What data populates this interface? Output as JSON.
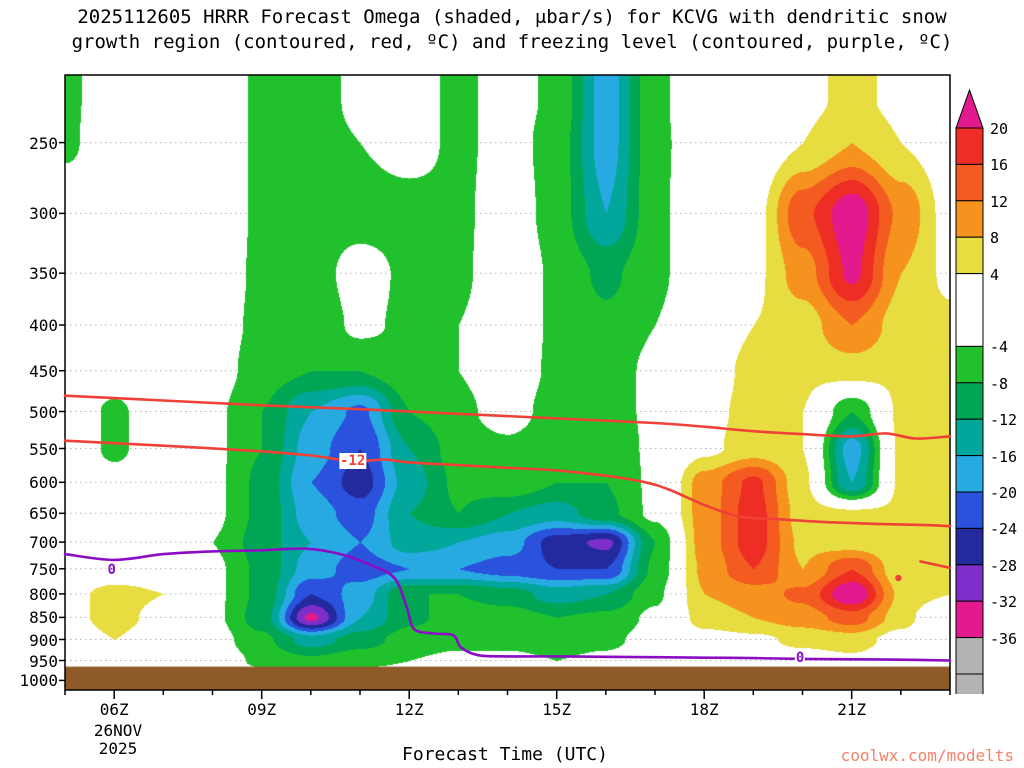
{
  "title": {
    "line1": "2025112605 HRRR Forecast Omega (shaded, μbar/s) for KCVG with dendritic snow",
    "line2": "growth region (contoured, red, ºC) and freezing level (contoured, purple, ºC)"
  },
  "watermark": {
    "text": "coolwx.com/modelts",
    "color": "#f2836b"
  },
  "axes": {
    "x_title": "Forecast Time (UTC)",
    "x_ticks": [
      {
        "hour": 6,
        "label": "06Z"
      },
      {
        "hour": 9,
        "label": "09Z"
      },
      {
        "hour": 12,
        "label": "12Z"
      },
      {
        "hour": 15,
        "label": "15Z"
      },
      {
        "hour": 18,
        "label": "18Z"
      },
      {
        "hour": 21,
        "label": "21Z"
      }
    ],
    "date_line1": "26NOV",
    "date_line2": "2025",
    "y_ticks": [
      250,
      300,
      350,
      400,
      450,
      500,
      550,
      600,
      650,
      700,
      750,
      800,
      850,
      900,
      950,
      1000
    ]
  },
  "chart_data": {
    "type": "heatmap",
    "title": "HRRR Forecast Omega time-height cross section for KCVG",
    "units": "μbar/s",
    "x_axis": "Forecast Time (UTC), 26 Nov 2025, range 05Z-23Z",
    "y_axis": "Pressure (hPa), log scale, 210 (top) to 1025 (bottom)",
    "x_range": [
      5,
      23
    ],
    "y_range": [
      210,
      1025
    ],
    "y_scale": "log",
    "x_hours": [
      5,
      6,
      7,
      8,
      9,
      10,
      11,
      12,
      13,
      14,
      15,
      16,
      17,
      18,
      19,
      20,
      21,
      22,
      23
    ],
    "pressures_hpa": [
      225,
      250,
      300,
      350,
      400,
      450,
      500,
      550,
      600,
      650,
      700,
      750,
      800,
      850,
      900,
      950,
      1000
    ],
    "omega_grid": [
      [
        -5,
        -1,
        0,
        0,
        -5,
        -6,
        -3,
        -2,
        -5,
        -2,
        -5,
        -18,
        -5,
        0,
        0,
        3,
        5,
        3,
        0
      ],
      [
        -5,
        0,
        0,
        0,
        -5,
        -6,
        -4,
        -2,
        -5,
        -2,
        -6,
        -18,
        -5,
        -1,
        0,
        4,
        8,
        4,
        1
      ],
      [
        0,
        0,
        0,
        0,
        -5,
        -6,
        -6,
        -6,
        -5,
        -1,
        -6,
        -16,
        -5,
        0,
        2,
        15,
        23,
        11,
        2
      ],
      [
        0,
        0,
        0,
        -1,
        -5,
        -6,
        -2,
        -5,
        -5,
        0,
        -5,
        -9,
        -5,
        0,
        3,
        10,
        21,
        8,
        3
      ],
      [
        0,
        0,
        0,
        -2,
        -5,
        -7,
        -3,
        -5,
        -4,
        0,
        -5,
        -7,
        -4,
        1,
        4,
        6,
        12,
        6,
        5
      ],
      [
        0,
        -1,
        0,
        -2,
        -6,
        -8,
        -8,
        -5,
        -4,
        -1,
        -5,
        -6,
        -3,
        2,
        5,
        5,
        6,
        5,
        5
      ],
      [
        0,
        -5,
        0,
        -3,
        -8,
        -16,
        -21,
        -8,
        -5,
        -2,
        -6,
        -6,
        -3,
        3,
        5,
        4,
        -8,
        5,
        5
      ],
      [
        0,
        -5,
        0,
        -3,
        -8,
        -18,
        -24,
        -12,
        -6,
        -5,
        -7,
        -7,
        -3,
        3,
        6,
        4,
        -18,
        5,
        5
      ],
      [
        0,
        -2,
        0,
        -3,
        -9,
        -20,
        -26,
        -14,
        -7,
        -5,
        -8,
        -8,
        -3,
        10,
        17,
        5,
        -16,
        5,
        5
      ],
      [
        0,
        0,
        -1,
        -3,
        -9,
        -18,
        -22,
        -12,
        -8,
        -12,
        -14,
        -9,
        -3,
        10,
        18,
        6,
        5,
        5,
        5
      ],
      [
        0,
        0,
        -1,
        -4,
        -10,
        -16,
        -20,
        -14,
        -16,
        -18,
        -26,
        -29,
        -8,
        10,
        18,
        7,
        6,
        4,
        5
      ],
      [
        1,
        2,
        2,
        -3,
        -9,
        -18,
        -22,
        -20,
        -20,
        -22,
        -24,
        -24,
        -7,
        9,
        16,
        8,
        16,
        5,
        5
      ],
      [
        3,
        5,
        4,
        -3,
        -9,
        -24,
        -18,
        -8,
        -8,
        -10,
        -14,
        -12,
        -5,
        8,
        10,
        13,
        24,
        7,
        4
      ],
      [
        3,
        5,
        3,
        -3,
        -10,
        -33,
        -16,
        -9,
        -6,
        -6,
        -8,
        -7,
        -3,
        6,
        8,
        10,
        14,
        6,
        -4
      ],
      [
        2,
        4,
        2,
        -2,
        -7,
        -14,
        -10,
        -6,
        -5,
        -5,
        -6,
        -5,
        -2,
        2,
        3,
        5,
        6,
        2,
        -3
      ],
      [
        0,
        2,
        1,
        -1,
        -5,
        -7,
        -5,
        -4,
        -3,
        -3,
        -4,
        -3,
        -1,
        1,
        2,
        2,
        3,
        1,
        -2
      ],
      [
        0,
        0,
        0,
        0,
        -1,
        -2,
        -1,
        -1,
        -1,
        -1,
        -1,
        -1,
        0,
        0,
        0,
        1,
        1,
        0,
        0
      ]
    ],
    "colorscale": {
      "thresholds": [
        20,
        16,
        12,
        8,
        4,
        -4,
        -8,
        -12,
        -16,
        -20,
        -24,
        -28,
        -32,
        -36,
        -40
      ],
      "colors": [
        "#e21a8d",
        "#ee2d24",
        "#f35b20",
        "#f6921e",
        "#e7dc40",
        "#ffffff",
        "#21c12d",
        "#00a653",
        "#00a79a",
        "#27aae1",
        "#2a52dd",
        "#232a9d",
        "#7e2fc9",
        "#e21a8d",
        "#b3b3b3",
        "#000000"
      ],
      "labels": [
        "20",
        "16",
        "12",
        "8",
        "4",
        "-4",
        "-8",
        "-12",
        "-16",
        "-20",
        "-24",
        "-28",
        "-32",
        "-36"
      ]
    },
    "contours": {
      "dgz_red": {
        "name": "dendritic snow growth region (ºC)",
        "color": "#ef4136",
        "label": "-12",
        "label_pos": {
          "t": 10.85,
          "p": 568
        },
        "lines": [
          [
            [
              5,
              480
            ],
            [
              7,
              486
            ],
            [
              9,
              492
            ],
            [
              11,
              497
            ],
            [
              13,
              503
            ],
            [
              15,
              509
            ],
            [
              17,
              515
            ],
            [
              18,
              520
            ],
            [
              19,
              526
            ],
            [
              20,
              530
            ],
            [
              21,
              533
            ],
            [
              21.7,
              529
            ],
            [
              22.3,
              536
            ],
            [
              23,
              533
            ]
          ],
          [
            [
              5,
              539
            ],
            [
              7,
              546
            ],
            [
              9,
              554
            ],
            [
              10,
              560
            ],
            [
              10.85,
              568
            ],
            [
              11.5,
              566
            ],
            [
              12,
              570
            ],
            [
              13,
              574
            ],
            [
              14,
              578
            ],
            [
              15,
              582
            ],
            [
              16,
              590
            ],
            [
              16.8,
              600
            ],
            [
              17.3,
              612
            ],
            [
              18,
              636
            ],
            [
              18.7,
              655
            ],
            [
              19.5,
              660
            ],
            [
              20.5,
              665
            ],
            [
              21.5,
              668
            ],
            [
              22.5,
              670
            ],
            [
              23,
              672
            ]
          ],
          [
            [
              22.4,
              736
            ],
            [
              22.7,
              742
            ],
            [
              23,
              748
            ]
          ]
        ],
        "dot": {
          "t": 21.95,
          "p": 768
        }
      },
      "freezing_purple": {
        "name": "freezing level 0ºC",
        "color": "#8a0dc4",
        "labels": [
          {
            "text": "0",
            "t": 5.95,
            "p": 753
          },
          {
            "text": "0",
            "t": 19.95,
            "p": 944
          }
        ],
        "lines": [
          [
            [
              5,
              722
            ],
            [
              6,
              733
            ],
            [
              7,
              722
            ],
            [
              8,
              717
            ],
            [
              9,
              715
            ],
            [
              9.9,
              712
            ],
            [
              10.6,
              722
            ],
            [
              11.2,
              742
            ],
            [
              11.7,
              768
            ],
            [
              11.95,
              828
            ],
            [
              12.1,
              876
            ],
            [
              12.5,
              886
            ],
            [
              12.9,
              890
            ],
            [
              13.05,
              918
            ],
            [
              13.4,
              937
            ],
            [
              14,
              940
            ],
            [
              15,
              940
            ],
            [
              16,
              941
            ],
            [
              17,
              942
            ],
            [
              18,
              943
            ],
            [
              19,
              944
            ],
            [
              20,
              946
            ],
            [
              21,
              947
            ],
            [
              22,
              948
            ],
            [
              23,
              950
            ]
          ]
        ]
      }
    },
    "ground": {
      "color": "#8e5a28",
      "from_hpa": 965
    }
  }
}
